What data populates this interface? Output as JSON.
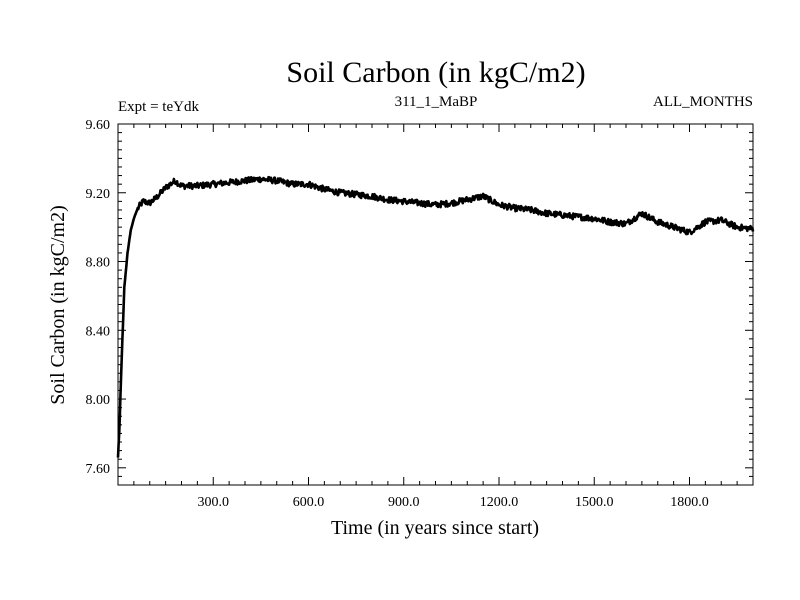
{
  "chart_data": {
    "type": "line",
    "title": "Soil Carbon (in kgC/m2)",
    "subtitle_left": "Expt = teYdk",
    "subtitle_center": "311_1_MaBP",
    "subtitle_right": "ALL_MONTHS",
    "xlabel": "Time (in years since start)",
    "ylabel": "Soil Carbon (in kgC/m2)",
    "xlim": [
      0,
      2000
    ],
    "ylim": [
      7.5,
      9.6
    ],
    "x_ticks": [
      300,
      600,
      900,
      1200,
      1500,
      1800
    ],
    "x_tick_labels": [
      "300.0",
      "600.0",
      "900.0",
      "1200.0",
      "1500.0",
      "1800.0"
    ],
    "y_ticks": [
      7.6,
      8.0,
      8.4,
      8.8,
      9.2,
      9.6
    ],
    "y_tick_labels": [
      "7.60",
      "8.00",
      "8.40",
      "8.80",
      "9.20",
      "9.60"
    ],
    "series": [
      {
        "name": "Soil Carbon",
        "x": [
          0,
          5,
          10,
          20,
          30,
          40,
          50,
          60,
          70,
          80,
          100,
          120,
          150,
          180,
          200,
          250,
          300,
          350,
          400,
          450,
          500,
          550,
          600,
          650,
          700,
          750,
          800,
          850,
          900,
          950,
          1000,
          1050,
          1100,
          1150,
          1200,
          1250,
          1300,
          1350,
          1400,
          1450,
          1500,
          1550,
          1600,
          1650,
          1700,
          1750,
          1800,
          1850,
          1900,
          1950,
          2000
        ],
        "values": [
          7.66,
          7.85,
          8.15,
          8.65,
          8.85,
          8.98,
          9.05,
          9.1,
          9.13,
          9.15,
          9.14,
          9.17,
          9.23,
          9.27,
          9.24,
          9.24,
          9.25,
          9.26,
          9.27,
          9.28,
          9.27,
          9.25,
          9.25,
          9.22,
          9.2,
          9.19,
          9.18,
          9.16,
          9.15,
          9.14,
          9.13,
          9.14,
          9.16,
          9.18,
          9.13,
          9.11,
          9.1,
          9.08,
          9.07,
          9.06,
          9.05,
          9.03,
          9.02,
          9.08,
          9.03,
          9.0,
          8.97,
          9.03,
          9.04,
          9.0,
          8.99
        ]
      }
    ]
  }
}
